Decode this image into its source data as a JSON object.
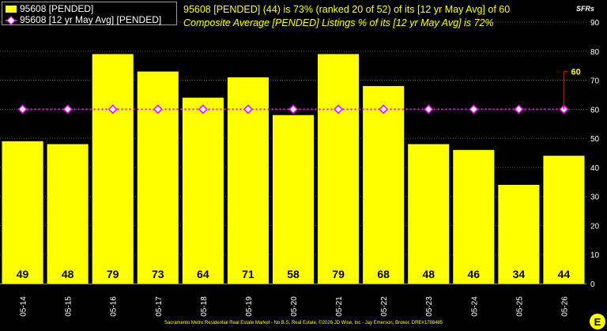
{
  "legend": {
    "bar_label": "95608 [PENDED]",
    "line_label": "95608 [12 yr May Avg] [PENDED]"
  },
  "headline": {
    "line1": "95608 [PENDED] (44) is 73% (ranked 20 of 52) of its [12 yr May Avg] of 60",
    "line2": "Composite Average [PENDED] Listings % of its [12 yr May Avg] is 72%"
  },
  "units_label": "SFRs",
  "footer": "Sacramento Metro Residential Real Estate Market - No B.S. Real Estate, ©2026 JD Wise, Inc - Jay Emerson, Broker, DRE#1788485",
  "logo_text": "E",
  "colors": {
    "bar": "#ffff00",
    "avg_line": "#ff00ff",
    "avg_marker": "#ffffff",
    "callout": "#cc0000",
    "grid": "#555555",
    "background": "#000000"
  },
  "chart_data": {
    "type": "bar",
    "categories": [
      "05-14",
      "05-15",
      "05-16",
      "05-17",
      "05-18",
      "05-19",
      "05-20",
      "05-21",
      "05-22",
      "05-23",
      "05-24",
      "05-25",
      "05-26"
    ],
    "series": [
      {
        "name": "95608 [PENDED]",
        "type": "bar",
        "values": [
          49,
          48,
          79,
          73,
          64,
          71,
          58,
          79,
          68,
          48,
          46,
          34,
          44
        ]
      },
      {
        "name": "95608 [12 yr May Avg] [PENDED]",
        "type": "line",
        "values": [
          60,
          60,
          60,
          60,
          60,
          60,
          60,
          60,
          60,
          60,
          60,
          60,
          60
        ]
      }
    ],
    "data_labels": [
      "49",
      "48",
      "79",
      "73",
      "64",
      "71",
      "58",
      "79",
      "68",
      "48",
      "46",
      "34",
      "44"
    ],
    "callout": {
      "text": "60",
      "category": "05-26"
    },
    "ylim": [
      0,
      90
    ],
    "y_ticks": [
      "0",
      "10",
      "20",
      "30",
      "40",
      "50",
      "60",
      "70",
      "80",
      "90"
    ],
    "y_axis_side": "right",
    "grid": true,
    "legend_position": "top-left"
  }
}
